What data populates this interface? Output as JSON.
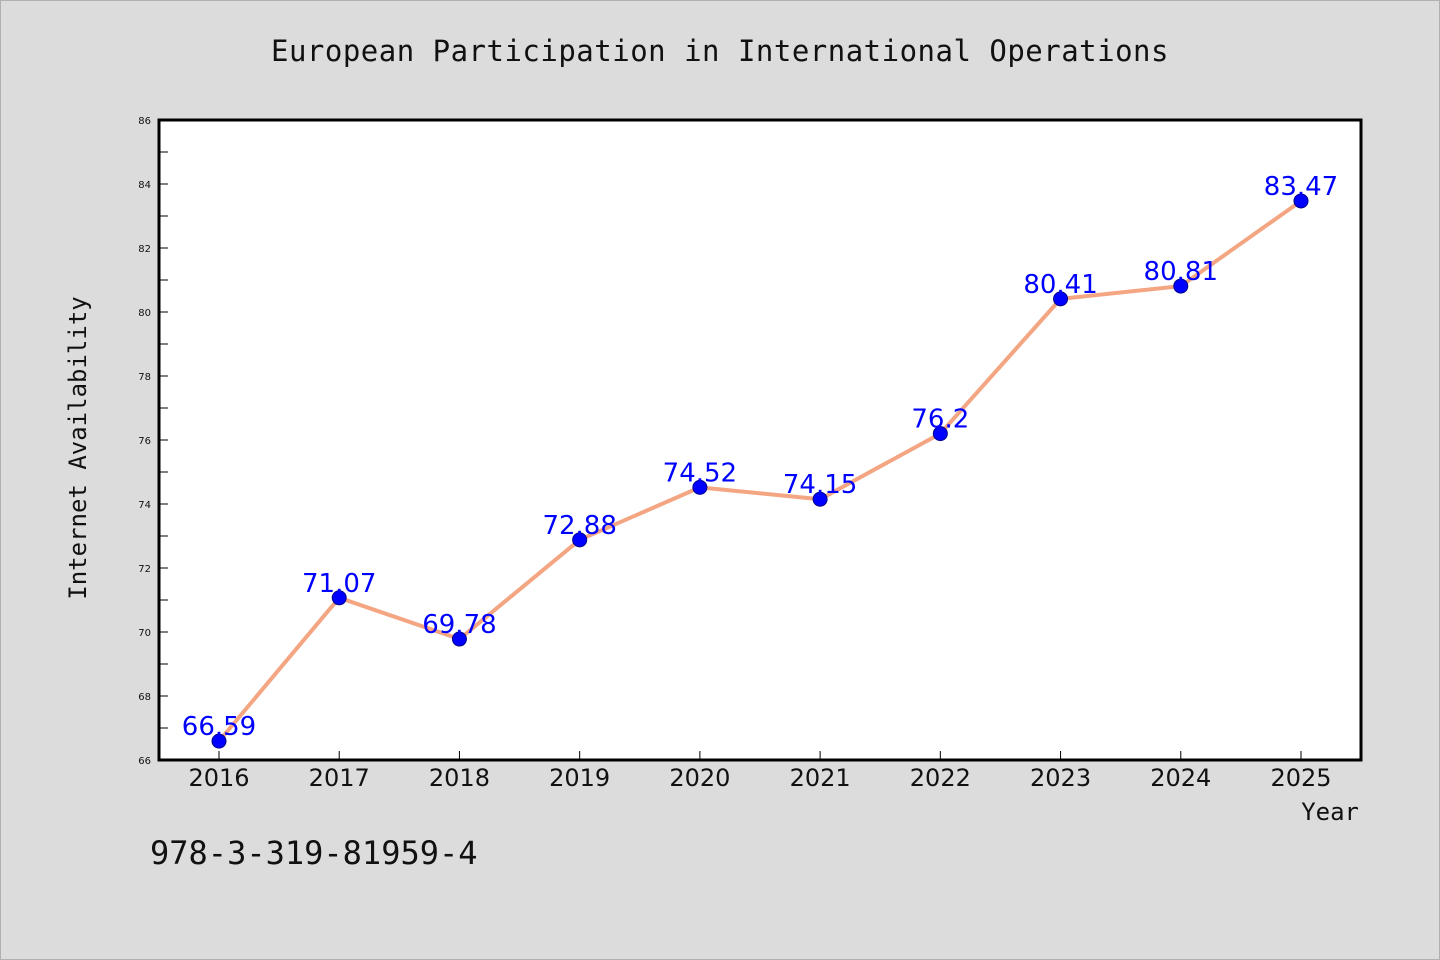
{
  "chart_data": {
    "type": "line",
    "title": "European Participation in International Operations",
    "xlabel": "Year",
    "ylabel": "Internet Availability",
    "x": [
      "2016",
      "2017",
      "2018",
      "2019",
      "2020",
      "2021",
      "2022",
      "2023",
      "2024",
      "2025"
    ],
    "series": [
      {
        "values": [
          66.59,
          71.07,
          69.78,
          72.88,
          74.52,
          74.15,
          76.2,
          80.41,
          80.81,
          83.47
        ],
        "line_color": "#f4a582",
        "marker_color": "#0000ff"
      }
    ],
    "ylim": [
      66,
      86
    ],
    "yticks": [
      66,
      68,
      70,
      72,
      74,
      76,
      78,
      80,
      82,
      84,
      86
    ],
    "data_labels": [
      "66.59",
      "71.07",
      "69.78",
      "72.88",
      "74.52",
      "74.15",
      "76.2",
      "80.41",
      "80.81",
      "83.47"
    ],
    "grid": false,
    "background": "#dcdcdc",
    "plot_background": "#ffffff"
  },
  "footer": {
    "isbn": "978-3-319-81959-4"
  }
}
